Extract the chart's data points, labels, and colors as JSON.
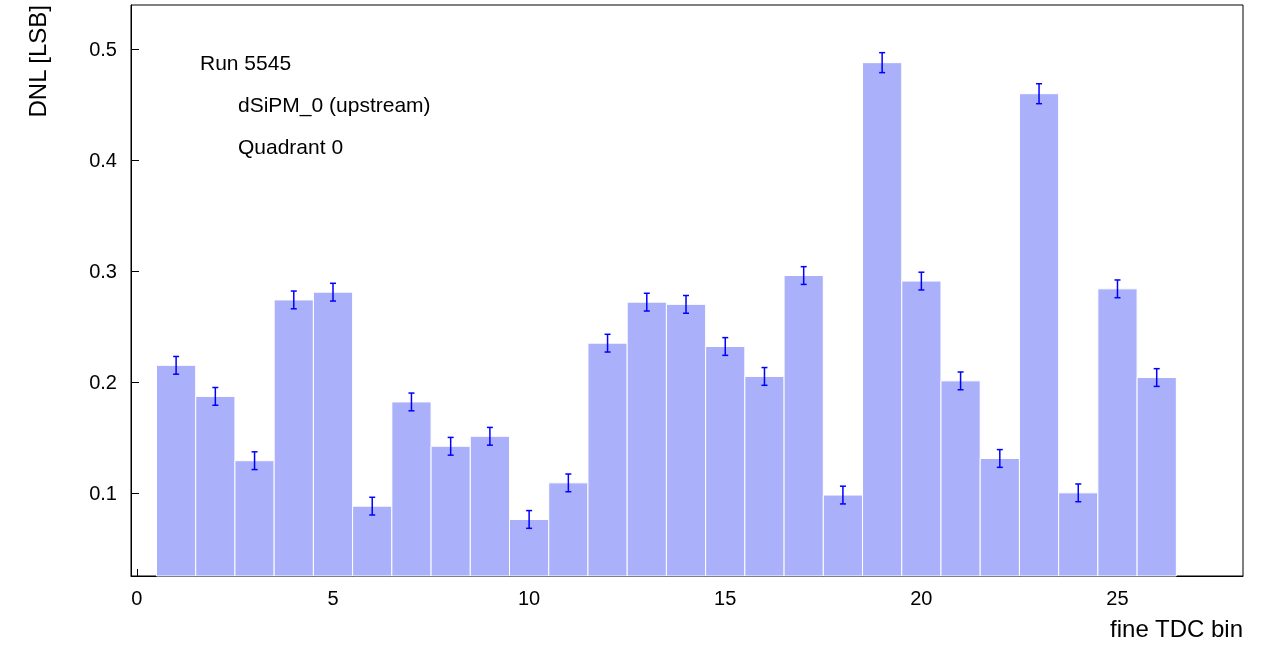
{
  "chart_data": {
    "type": "histogram",
    "xlabel": "fine TDC bin",
    "ylabel": "DNL [LSB]",
    "annotations": [
      "Run 5545",
      "dSiPM_0 (upstream)",
      "Quadrant 0"
    ],
    "bins": [
      0.5,
      1.5,
      2.5,
      3.5,
      4.5,
      5.5,
      6.5,
      7.5,
      8.5,
      9.5,
      10.5,
      11.5,
      12.5,
      13.5,
      14.5,
      15.5,
      16.5,
      17.5,
      18.5,
      19.5,
      20.5,
      21.5,
      22.5,
      23.5,
      24.5,
      25.5,
      26.5
    ],
    "values": [
      0.215,
      0.187,
      0.129,
      0.274,
      0.281,
      0.088,
      0.182,
      0.142,
      0.151,
      0.076,
      0.109,
      0.235,
      0.272,
      0.27,
      0.232,
      0.205,
      0.296,
      0.098,
      0.488,
      0.291,
      0.201,
      0.131,
      0.46,
      0.1,
      0.284,
      0.204
    ],
    "errors": [
      0.008,
      0.008,
      0.008,
      0.008,
      0.008,
      0.008,
      0.008,
      0.008,
      0.008,
      0.008,
      0.008,
      0.008,
      0.008,
      0.008,
      0.008,
      0.008,
      0.008,
      0.008,
      0.009,
      0.008,
      0.008,
      0.008,
      0.009,
      0.008,
      0.008,
      0.008
    ],
    "color": "#aab0fa",
    "xlim": [
      -0.15,
      28.2
    ],
    "xticks": [
      0,
      5,
      10,
      15,
      20,
      25
    ],
    "ylim": [
      0.025,
      0.54
    ],
    "yticks": [
      0.1,
      0.2,
      0.3,
      0.4,
      0.5
    ],
    "grid": false
  }
}
